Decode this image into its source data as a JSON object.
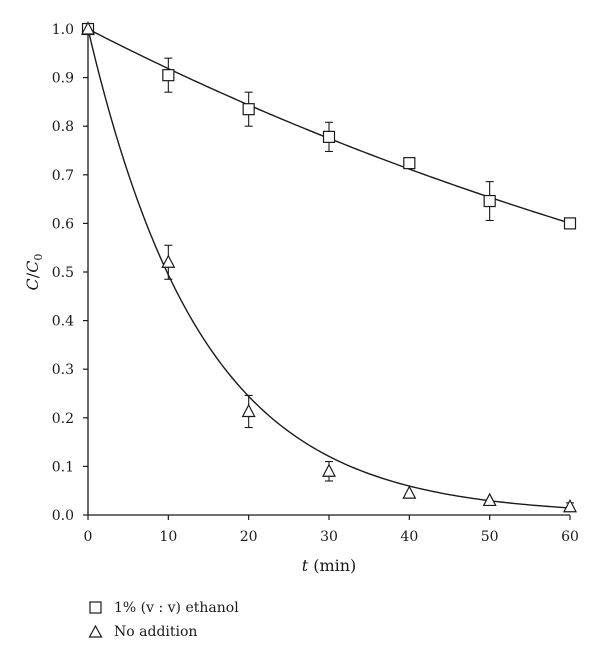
{
  "chart_data": {
    "type": "scatter",
    "x": [
      0,
      10,
      20,
      30,
      40,
      50,
      60
    ],
    "xlim": [
      0,
      60
    ],
    "ylim": [
      0,
      1.0
    ],
    "xticks": [
      "0",
      "10",
      "20",
      "30",
      "40",
      "50",
      "60"
    ],
    "yticks": [
      "0.0",
      "0.1",
      "0.2",
      "0.3",
      "0.4",
      "0.5",
      "0.6",
      "0.7",
      "0.8",
      "0.9",
      "1.0"
    ],
    "xlabel": {
      "var": "t",
      "unit": " (min)"
    },
    "ylabel": {
      "a": "C",
      "slash": "/",
      "b": "C",
      "sub": "0"
    },
    "grid": false,
    "legend_position": "bottom-left",
    "series": [
      {
        "name": "1% (v : v) ethanol",
        "marker": "square",
        "values": [
          1.0,
          0.905,
          0.835,
          0.778,
          0.724,
          0.646,
          0.6
        ],
        "errors": [
          0,
          0.035,
          0.035,
          0.03,
          0,
          0.04,
          0.008
        ],
        "fit": {
          "model": "exponential",
          "k": 0.0085
        }
      },
      {
        "name": "No addition",
        "marker": "triangle",
        "values": [
          1.0,
          0.52,
          0.213,
          0.09,
          0.045,
          0.03,
          0.017
        ],
        "errors": [
          0,
          0.035,
          0.033,
          0.02,
          0,
          0,
          0.008
        ],
        "fit": {
          "model": "exponential",
          "k": 0.0705
        }
      }
    ]
  }
}
